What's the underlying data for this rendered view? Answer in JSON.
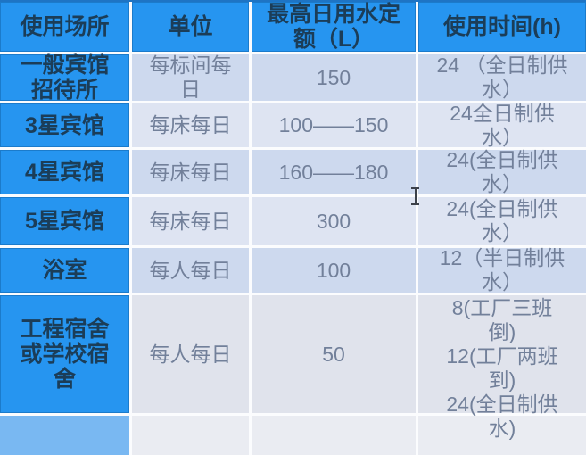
{
  "meta": {
    "description": "水用量定额表格截图（带文本光标）",
    "cursor_type": "text-ibeam"
  },
  "colors": {
    "accent_blue": "#2695f0",
    "top_border_blue": "#1e74c4",
    "row_tint_dark": "#cdd9ee",
    "row_tint_light": "#dee4f2",
    "row_tint_last": "#e0e3ec",
    "header_text": "#1b3d58",
    "cell_text": "#72809a",
    "gridline": "#fbfcfe"
  },
  "table": {
    "headers": {
      "place": "使用场所",
      "unit": "单位",
      "quota": "最高日用水定\n额（L）",
      "hours": "使用时间(h)"
    },
    "rows": [
      {
        "place": "一般宾馆\n招待所",
        "unit": "每标间每\n日",
        "quota": "150",
        "hours": "24 （全日制供\n水）"
      },
      {
        "place": "3星宾馆",
        "unit": "每床每日",
        "quota": "100——150",
        "hours": "24全日制供\n水）"
      },
      {
        "place": "4星宾馆",
        "unit": "每床每日",
        "quota": "160——180",
        "hours": "24(全日制供\n水）"
      },
      {
        "place": "5星宾馆",
        "unit": "每床每日",
        "quota": "300",
        "hours": "24(全日制供\n水）"
      },
      {
        "place": "浴室",
        "unit": "每人每日",
        "quota": "100",
        "hours": "12（半日制供\n水）"
      },
      {
        "place": "工程宿舍\n或学校宿\n舍",
        "unit": "每人每日",
        "quota": "50",
        "hours": "8(工厂三班\n倒)\n12(工厂两班\n到)\n24(全日制供\n水)"
      }
    ]
  }
}
